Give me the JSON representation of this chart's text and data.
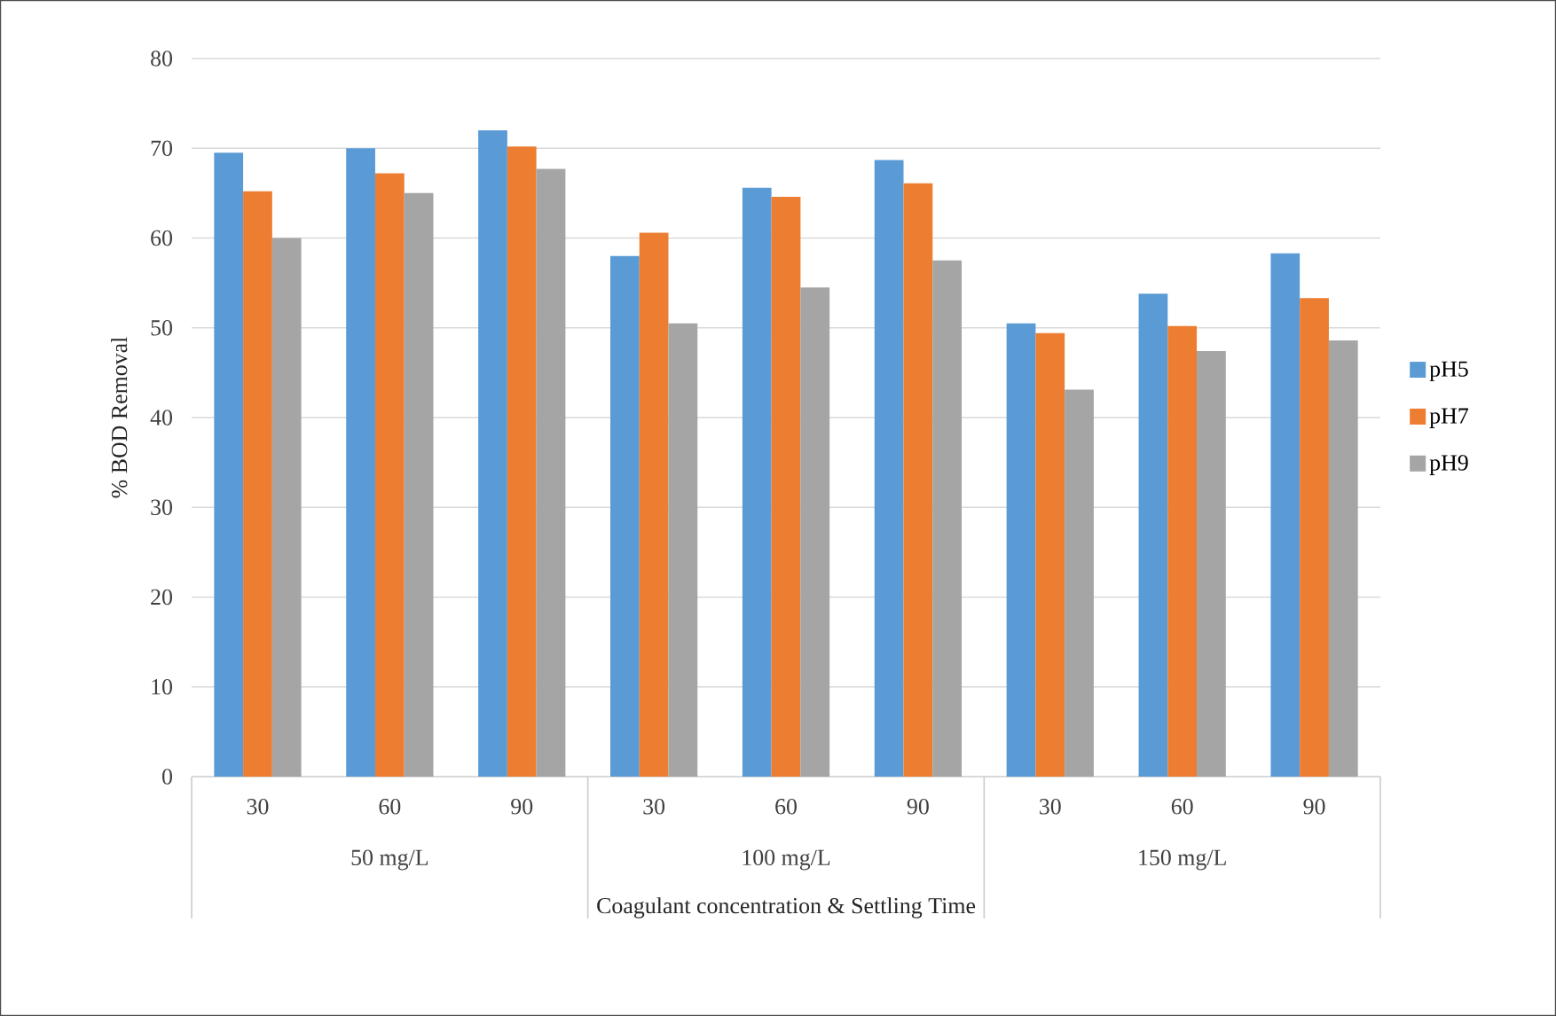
{
  "chart_data": {
    "type": "bar",
    "xlabel": "Coagulant concentration & Settling Time",
    "ylabel": "% BOD Removal",
    "categories": [
      "30",
      "60",
      "90",
      "30",
      "60",
      "90",
      "30",
      "60",
      "90"
    ],
    "annotations": [
      "50 mg/L",
      "100 mg/L",
      "150 mg/L"
    ],
    "series": [
      {
        "name": "pH5",
        "color": "#5b9bd5",
        "values": [
          69.5,
          70,
          72,
          58,
          65.6,
          68.7,
          50.5,
          53.8,
          58.3
        ]
      },
      {
        "name": "pH7",
        "color": "#ed7d31",
        "values": [
          65.2,
          67.2,
          70.2,
          60.6,
          64.6,
          66.1,
          49.4,
          50.2,
          53.3
        ]
      },
      {
        "name": "pH9",
        "color": "#a5a5a5",
        "values": [
          60,
          65,
          67.7,
          50.5,
          54.5,
          57.5,
          43.1,
          47.4,
          48.6
        ]
      }
    ],
    "ylim": [
      0,
      80
    ],
    "yticks": [
      0,
      10,
      20,
      30,
      40,
      50,
      60,
      70,
      80
    ],
    "grid": "y",
    "legend": "right"
  }
}
